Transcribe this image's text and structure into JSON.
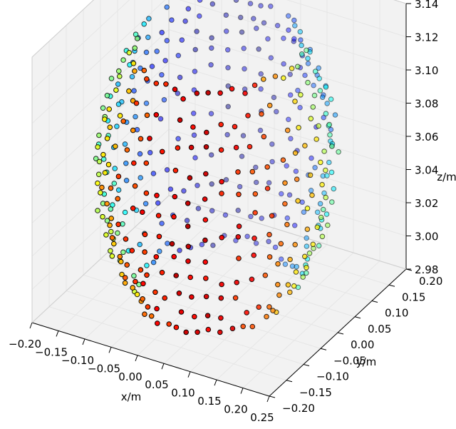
{
  "chart_data": {
    "type": "scatter3d",
    "title": "",
    "xlabel": "x/m",
    "ylabel": "y/m",
    "zlabel": "z/m",
    "xlim": [
      -0.2,
      0.25
    ],
    "ylim": [
      -0.2,
      0.2
    ],
    "zlim": [
      2.98,
      3.14
    ],
    "xticks": [
      "−0.20",
      "−0.15",
      "−0.10",
      "−0.05",
      "0.00",
      "0.05",
      "0.10",
      "0.15",
      "0.20",
      "0.25"
    ],
    "yticks": [
      "−0.20",
      "−0.15",
      "−0.10",
      "−0.05",
      "0.00",
      "0.05",
      "0.10",
      "0.15",
      "0.20"
    ],
    "zticks": [
      "2.98",
      "3.00",
      "3.02",
      "3.04",
      "3.06",
      "3.08",
      "3.10",
      "3.12",
      "3.14"
    ],
    "grid": true,
    "colormap": "jet",
    "marker_edge_color": "#000000",
    "pane_color": "#f2f2f2",
    "points_description_values": {
      "shape": "closed ring-shaped point cloud",
      "center": [
        0.02,
        0.0,
        3.06
      ],
      "radius_xy": 0.19,
      "z_range": [
        2.98,
        3.135
      ],
      "azimuth_samples": 44,
      "elevation_rows": 12,
      "count": 528
    }
  }
}
